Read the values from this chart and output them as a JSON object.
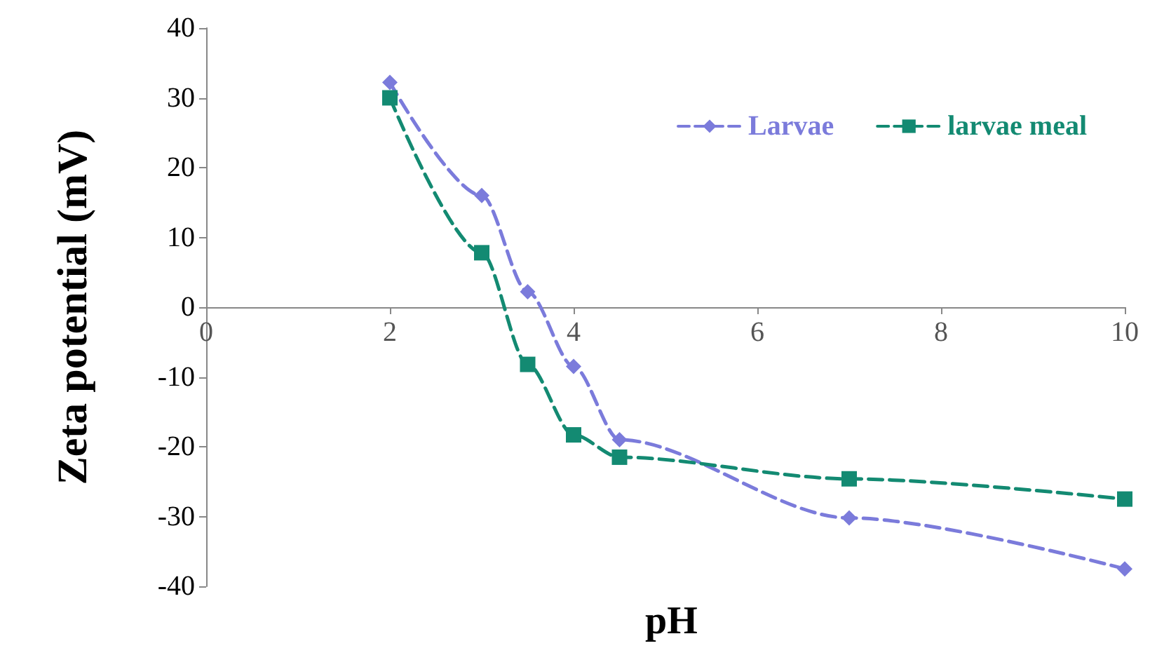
{
  "chart_data": {
    "type": "line",
    "xlabel": "pH",
    "ylabel": "Zeta potential (mV)",
    "x": [
      2,
      3,
      3.5,
      4,
      4.5,
      7,
      10
    ],
    "series": [
      {
        "name": "Larvae",
        "color": "#7b7bdb",
        "marker": "diamond",
        "values": [
          32.2,
          16,
          2.2,
          -8.5,
          -19,
          -30.2,
          -37.5
        ]
      },
      {
        "name": "larvae meal",
        "color": "#138a72",
        "marker": "square",
        "values": [
          30,
          7.8,
          -8.2,
          -18.3,
          -21.5,
          -24.6,
          -27.5
        ]
      }
    ],
    "xlim": [
      0,
      10
    ],
    "xticks": [
      0,
      2,
      4,
      6,
      8,
      10
    ],
    "ylim": [
      -40,
      40
    ],
    "yticks": [
      -40,
      -30,
      -20,
      -10,
      0,
      10,
      20,
      30,
      40
    ],
    "line_style": "dashed",
    "grid": false,
    "legend": "top right"
  }
}
